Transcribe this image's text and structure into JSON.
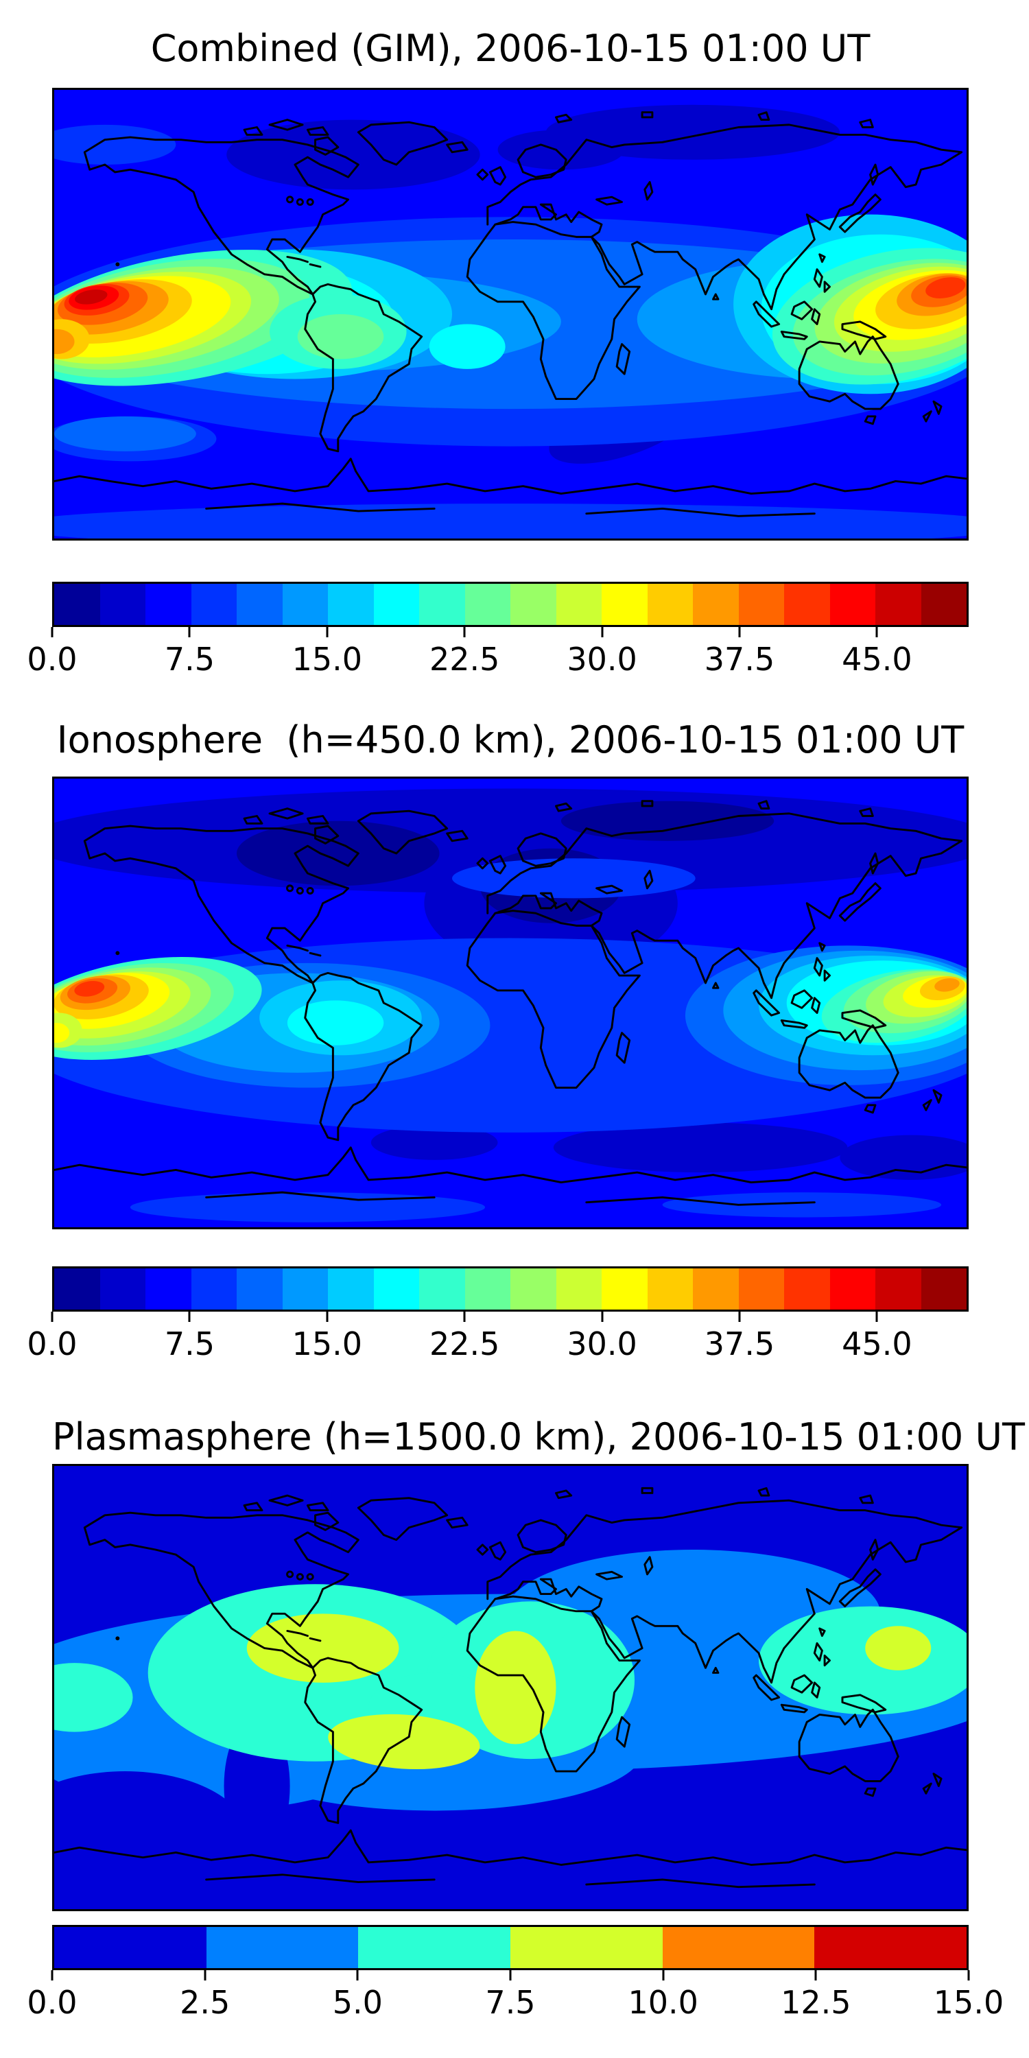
{
  "figure": {
    "background": "#ffffff",
    "type": "three-panel global ionosphere TEC contour maps",
    "coastline_color": "#000000"
  },
  "palettes": {
    "jet20": [
      "#000099",
      "#0000cc",
      "#0000ff",
      "#0033ff",
      "#0066ff",
      "#0099ff",
      "#00ccff",
      "#00ffff",
      "#33ffcc",
      "#66ff99",
      "#99ff66",
      "#ccff33",
      "#ffff00",
      "#ffcc00",
      "#ff9900",
      "#ff6600",
      "#ff3300",
      "#ff0000",
      "#cc0000",
      "#990000"
    ],
    "jet6": [
      "#0000d9",
      "#0080ff",
      "#2bffd4",
      "#d4ff2b",
      "#ff8000",
      "#d40000"
    ]
  },
  "panels": [
    {
      "id": "combined",
      "title": "Combined (GIM), 2006-10-15 01:00 UT",
      "colorbar": {
        "palette": "jet20",
        "vmin": 0,
        "vmax": 50,
        "tick_labels": [
          "0.0",
          "7.5",
          "15.0",
          "22.5",
          "30.0",
          "37.5",
          "45.0"
        ],
        "tick_values": [
          0,
          7.5,
          15,
          22.5,
          30,
          37.5,
          45
        ]
      }
    },
    {
      "id": "ionosphere",
      "title": "Ionosphere  (h=450.0 km), 2006-10-15 01:00 UT",
      "colorbar": {
        "palette": "jet20",
        "vmin": 0,
        "vmax": 50,
        "tick_labels": [
          "0.0",
          "7.5",
          "15.0",
          "22.5",
          "30.0",
          "37.5",
          "45.0"
        ],
        "tick_values": [
          0,
          7.5,
          15,
          22.5,
          30,
          37.5,
          45
        ]
      }
    },
    {
      "id": "plasmasphere",
      "title": "Plasmasphere (h=1500.0 km), 2006-10-15 01:00 UT",
      "colorbar": {
        "palette": "jet6",
        "vmin": 0,
        "vmax": 15,
        "tick_labels": [
          "0.0",
          "2.5",
          "5.0",
          "7.5",
          "10.0",
          "12.5",
          "15.0"
        ],
        "tick_values": [
          0,
          2.5,
          5,
          7.5,
          10,
          12.5,
          15
        ]
      }
    }
  ],
  "chart_data": [
    {
      "type": "heatmap",
      "subtype": "filled-contour world map",
      "title": "Combined (GIM), 2006-10-15 01:00 UT",
      "colormap": "jet",
      "region": "global",
      "value_range": [
        0,
        50
      ],
      "contour_step": 2.5,
      "n_bands": 20,
      "colorbar_ticks": [
        0,
        7.5,
        15,
        22.5,
        30,
        37.5,
        45
      ],
      "features": [
        {
          "name": "pacific-west-anomaly-crest",
          "lon": -164,
          "lat": 10,
          "peak_value": 46
        },
        {
          "name": "pacific-east-anomaly-crest-at-dateline",
          "lon": 173,
          "lat": 8,
          "peak_value": 41
        },
        {
          "name": "yellow-band-central-pacific",
          "lon_range": [
            -180,
            -95
          ],
          "lat_range": [
            -10,
            5
          ],
          "value_range": [
            30,
            35
          ]
        },
        {
          "name": "elevated-south-america",
          "lon_range": [
            -80,
            -35
          ],
          "lat_range": [
            -20,
            5
          ],
          "value_range": [
            18,
            25
          ]
        },
        {
          "name": "elevated-west-pacific-east-asia",
          "lon_range": [
            110,
            180
          ],
          "lat_range": [
            -35,
            45
          ],
          "value_range": [
            15,
            32
          ]
        },
        {
          "name": "atlantic-cyan-spot",
          "lon": -18,
          "lat": -13,
          "value": 20
        },
        {
          "name": "low-northeast-canada-atlantic",
          "lon_range": [
            -105,
            -40
          ],
          "lat_range": [
            50,
            75
          ],
          "value_range": [
            2.5,
            5
          ]
        },
        {
          "name": "low-north-russia",
          "lon_range": [
            30,
            130
          ],
          "lat_range": [
            62,
            80
          ],
          "value_range": [
            2.5,
            5
          ]
        },
        {
          "name": "low-south-atlantic-indian",
          "lon_range": [
            15,
            80
          ],
          "lat_range": [
            -55,
            -38
          ],
          "value_range": [
            2.5,
            5
          ]
        },
        {
          "name": "global-background",
          "value_range": [
            5,
            12.5
          ]
        }
      ]
    },
    {
      "type": "heatmap",
      "subtype": "filled-contour world map",
      "title": "Ionosphere  (h=450.0 km), 2006-10-15 01:00 UT",
      "colormap": "jet",
      "region": "global",
      "value_range": [
        0,
        50
      ],
      "contour_step": 2.5,
      "n_bands": 20,
      "colorbar_ticks": [
        0,
        7.5,
        15,
        22.5,
        30,
        37.5,
        45
      ],
      "features": [
        {
          "name": "pacific-west-anomaly-crest",
          "lon": -165,
          "lat": 7,
          "peak_value": 41
        },
        {
          "name": "pacific-east-anomaly-crest-at-dateline",
          "lon": 173,
          "lat": 5,
          "peak_value": 36
        },
        {
          "name": "yellow-band-central-pacific",
          "lon_range": [
            -180,
            -130
          ],
          "lat_range": [
            -12,
            3
          ],
          "value_range": [
            27.5,
            33
          ]
        },
        {
          "name": "elevated-south-america",
          "lon_range": [
            -80,
            -40
          ],
          "lat_range": [
            -15,
            3
          ],
          "value_range": [
            12.5,
            18
          ]
        },
        {
          "name": "elevated-west-pacific",
          "lon_range": [
            125,
            180
          ],
          "lat_range": [
            -30,
            40
          ],
          "value_range": [
            12.5,
            28
          ]
        },
        {
          "name": "low-north-america-atlantic",
          "lon_range": [
            -110,
            -30
          ],
          "lat_range": [
            40,
            80
          ],
          "value_range": [
            0,
            5
          ]
        },
        {
          "name": "low-europe-north-africa",
          "lon_range": [
            -10,
            50
          ],
          "lat_range": [
            15,
            55
          ],
          "value_range": [
            2.5,
            5
          ]
        },
        {
          "name": "low-south-indian-ocean",
          "lon_range": [
            40,
            110
          ],
          "lat_range": [
            -62,
            -48
          ],
          "value_range": [
            2.5,
            5
          ]
        },
        {
          "name": "global-background",
          "value_range": [
            5,
            10
          ]
        }
      ]
    },
    {
      "type": "heatmap",
      "subtype": "filled-contour world map",
      "title": "Plasmasphere (h=1500.0 km), 2006-10-15 01:00 UT",
      "colormap": "jet",
      "region": "global",
      "value_range": [
        0,
        15
      ],
      "contour_step": 2.5,
      "n_bands": 6,
      "colorbar_ticks": [
        0,
        2.5,
        5,
        7.5,
        10,
        12.5,
        15
      ],
      "features": [
        {
          "name": "cell-central-america",
          "lon": -74,
          "lat": 16,
          "value_range": [
            7.5,
            10
          ]
        },
        {
          "name": "cell-south-america-south-atlantic",
          "lon": -42,
          "lat": -22,
          "value_range": [
            7.5,
            10
          ]
        },
        {
          "name": "cell-africa",
          "lon": 2,
          "lat": 0,
          "value_range": [
            7.5,
            10
          ]
        },
        {
          "name": "cell-west-pacific",
          "lon": 153,
          "lat": 16,
          "value_range": [
            7.5,
            10
          ]
        },
        {
          "name": "equatorial-turquoise-band",
          "lon_range": [
            -180,
            180
          ],
          "lat_range": [
            -35,
            25
          ],
          "value_range": [
            5,
            7.5
          ]
        },
        {
          "name": "midlatitude-blue-band",
          "lon_range": [
            -180,
            180
          ],
          "lat_range": [
            -55,
            40
          ],
          "value_range": [
            2.5,
            5
          ]
        },
        {
          "name": "polar-background",
          "lat_range_north": [
            40,
            90
          ],
          "lat_range_south": [
            -90,
            -55
          ],
          "value_range": [
            0,
            2.5
          ]
        }
      ]
    }
  ]
}
